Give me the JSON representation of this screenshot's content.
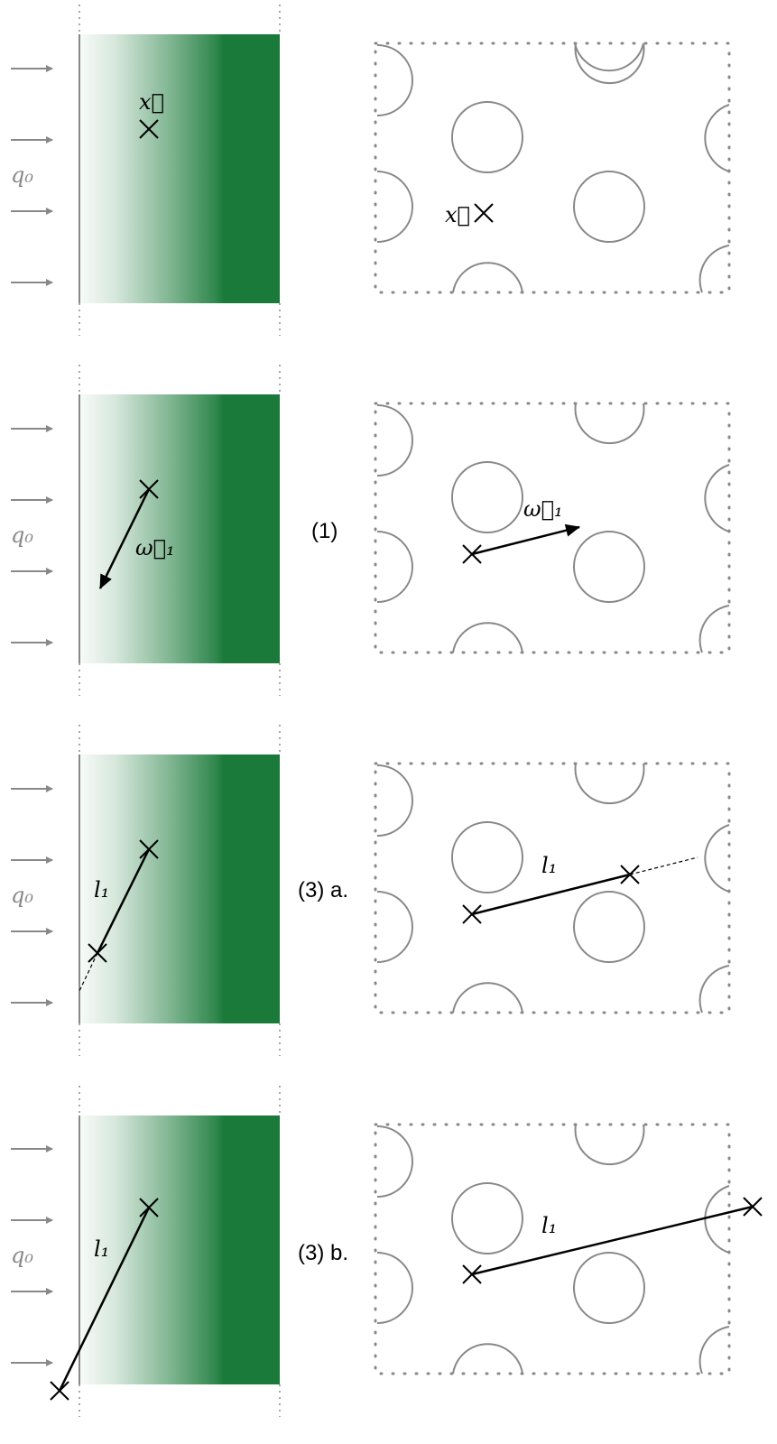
{
  "colors": {
    "green": "#1a7a3a",
    "gray": "#888888",
    "black": "#000000"
  },
  "labels": {
    "q0": "q₀",
    "x_vec": "x⃗",
    "omega1": "ω⃗₁",
    "l1": "l₁"
  },
  "steps": [
    "",
    "(1)",
    "(3) a.",
    "(3) b."
  ]
}
